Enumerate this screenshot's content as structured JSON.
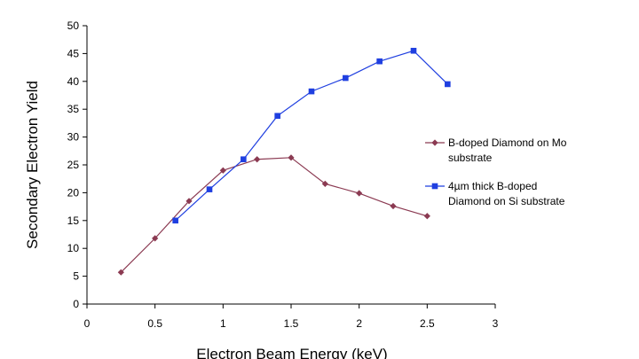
{
  "chart_data": {
    "type": "line",
    "title": "",
    "xlabel": "Electron Beam Energy (keV)",
    "ylabel": "Secondary Electron Yield",
    "xlim": [
      0,
      3
    ],
    "ylim": [
      0,
      50
    ],
    "xticks": [
      "0",
      "0.5",
      "1",
      "1.5",
      "2",
      "2.5",
      "3"
    ],
    "yticks": [
      "0",
      "5",
      "10",
      "15",
      "20",
      "25",
      "30",
      "35",
      "40",
      "45",
      "50"
    ],
    "grid": false,
    "legend_position": "right",
    "series": [
      {
        "name": "B-doped Diamond on Mo substrate",
        "legend_lines": [
          "B-doped Diamond on Mo",
          "substrate"
        ],
        "color": "#8B3A52",
        "marker": "diamond",
        "points": [
          {
            "x": 0.25,
            "y": 5.7
          },
          {
            "x": 0.5,
            "y": 11.8
          },
          {
            "x": 0.75,
            "y": 18.5
          },
          {
            "x": 1.0,
            "y": 24.0
          },
          {
            "x": 1.25,
            "y": 26.0
          },
          {
            "x": 1.5,
            "y": 26.3
          },
          {
            "x": 1.75,
            "y": 21.6
          },
          {
            "x": 2.0,
            "y": 19.9
          },
          {
            "x": 2.25,
            "y": 17.6
          },
          {
            "x": 2.5,
            "y": 15.8
          }
        ]
      },
      {
        "name": "4µm thick B-doped Diamond on Si substrate",
        "legend_lines": [
          "4µm thick B-doped",
          "Diamond on Si substrate"
        ],
        "color": "#1F3FE0",
        "marker": "square",
        "points": [
          {
            "x": 0.65,
            "y": 15.0
          },
          {
            "x": 0.9,
            "y": 20.6
          },
          {
            "x": 1.15,
            "y": 26.0
          },
          {
            "x": 1.4,
            "y": 33.8
          },
          {
            "x": 1.65,
            "y": 38.2
          },
          {
            "x": 1.9,
            "y": 40.6
          },
          {
            "x": 2.15,
            "y": 43.6
          },
          {
            "x": 2.4,
            "y": 45.5
          },
          {
            "x": 2.65,
            "y": 39.5
          }
        ]
      }
    ]
  }
}
